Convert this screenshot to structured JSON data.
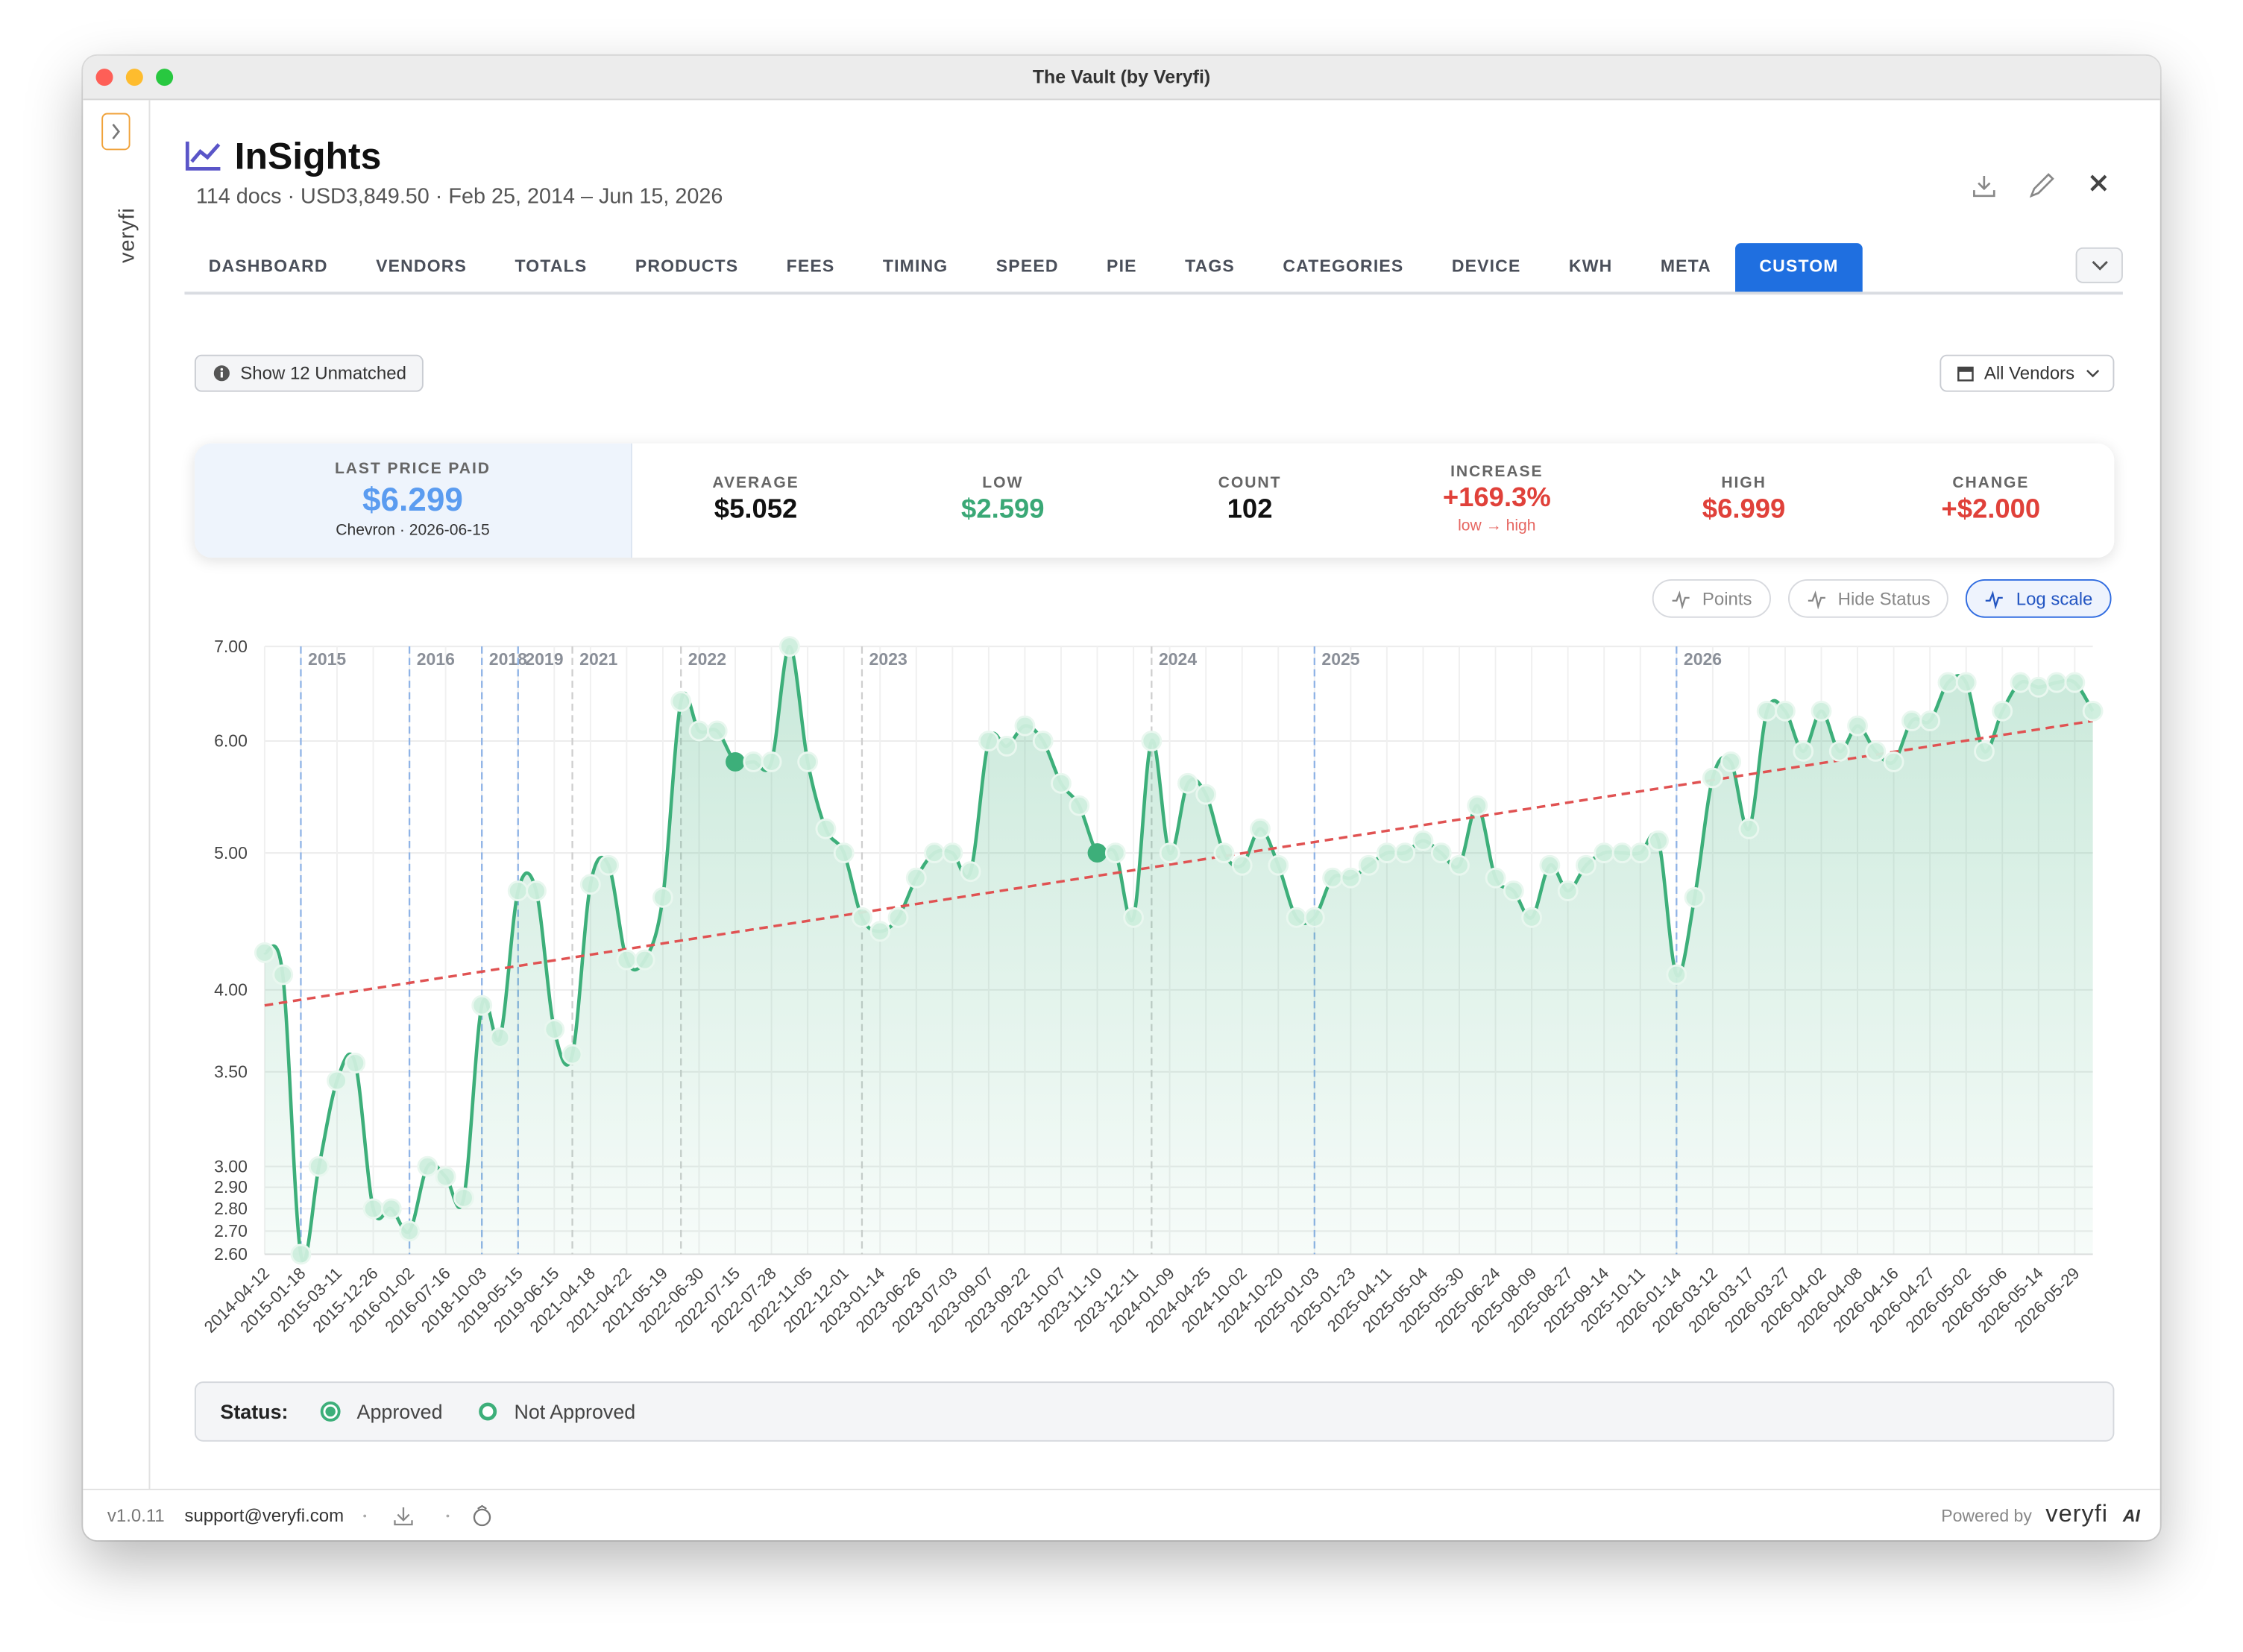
{
  "window": {
    "title": "The Vault (by Veryfi)"
  },
  "sidebar": {
    "brand": "veryfi"
  },
  "header": {
    "title": "InSights",
    "subtitle": "114 docs · USD3,849.50 · Feb 25, 2014 – Jun 15, 2026"
  },
  "tabs": [
    {
      "label": "DASHBOARD"
    },
    {
      "label": "VENDORS"
    },
    {
      "label": "TOTALS"
    },
    {
      "label": "PRODUCTS"
    },
    {
      "label": "FEES"
    },
    {
      "label": "TIMING"
    },
    {
      "label": "SPEED"
    },
    {
      "label": "PIE"
    },
    {
      "label": "TAGS"
    },
    {
      "label": "CATEGORIES"
    },
    {
      "label": "DEVICE"
    },
    {
      "label": "KWH"
    },
    {
      "label": "META"
    },
    {
      "label": "CUSTOM",
      "active": true
    }
  ],
  "buttons": {
    "unmatched": "Show 12 Unmatched",
    "vendors": "All Vendors"
  },
  "stats": {
    "last": {
      "label": "LAST PRICE PAID",
      "value": "$6.299",
      "note": "Chevron · 2026-06-15",
      "color": "#5b9cf0"
    },
    "items": [
      {
        "label": "AVERAGE",
        "value": "$5.052",
        "color": "#111111"
      },
      {
        "label": "LOW",
        "value": "$2.599",
        "color": "#3aa876"
      },
      {
        "label": "COUNT",
        "value": "102",
        "color": "#111111"
      },
      {
        "label": "INCREASE",
        "value": "+169.3%",
        "color": "#e0413a",
        "note": "low → high"
      },
      {
        "label": "HIGH",
        "value": "$6.999",
        "color": "#e0413a"
      },
      {
        "label": "CHANGE",
        "value": "+$2.000",
        "color": "#e0413a"
      }
    ]
  },
  "chart_controls": [
    {
      "label": "Points"
    },
    {
      "label": "Hide Status"
    },
    {
      "label": "Log scale",
      "active": true
    }
  ],
  "chart_data": {
    "type": "line",
    "color": "#3daf7a",
    "log_scale": true,
    "grid": true,
    "ylim": [
      2.6,
      7.0
    ],
    "yticks": [
      {
        "value": 2.6,
        "label": "2.60"
      },
      {
        "value": 2.7,
        "label": "2.70"
      },
      {
        "value": 2.8,
        "label": "2.80"
      },
      {
        "value": 2.9,
        "label": "2.90"
      },
      {
        "value": 3.0,
        "label": "3.00"
      },
      {
        "value": 3.5,
        "label": "3.50"
      },
      {
        "value": 4.0,
        "label": "4.00"
      },
      {
        "value": 5.0,
        "label": "5.00"
      },
      {
        "value": 6.0,
        "label": "6.00"
      },
      {
        "value": 7.0,
        "label": "7.00"
      }
    ],
    "categories": [
      "2014-04-12",
      null,
      "2015-01-18",
      null,
      "2015-03-11",
      null,
      "2015-12-26",
      null,
      "2016-01-02",
      null,
      "2016-07-16",
      null,
      "2018-10-03",
      null,
      "2019-05-15",
      null,
      "2019-06-15",
      null,
      "2021-04-18",
      null,
      "2021-04-22",
      null,
      "2021-05-19",
      null,
      "2022-06-30",
      null,
      "2022-07-15",
      null,
      "2022-07-28",
      null,
      "2022-11-05",
      null,
      "2022-12-01",
      null,
      "2023-01-14",
      null,
      "2023-06-26",
      null,
      "2023-07-03",
      null,
      "2023-09-07",
      null,
      "2023-09-22",
      null,
      "2023-10-07",
      null,
      "2023-11-10",
      null,
      "2023-12-11",
      null,
      "2024-01-09",
      null,
      "2024-04-25",
      null,
      "2024-10-02",
      null,
      "2024-10-20",
      null,
      "2025-01-03",
      null,
      "2025-01-23",
      null,
      "2025-04-11",
      null,
      "2025-05-04",
      null,
      "2025-05-30",
      null,
      "2025-06-24",
      null,
      "2025-08-09",
      null,
      "2025-08-27",
      null,
      "2025-09-14",
      null,
      "2025-10-11",
      null,
      "2026-01-14",
      null,
      "2026-03-12",
      null,
      "2026-03-17",
      null,
      "2026-03-27",
      null,
      "2026-04-02",
      null,
      "2026-04-08",
      null,
      "2026-04-16",
      null,
      "2026-04-27",
      null,
      "2026-05-02",
      null,
      "2026-05-06",
      null,
      "2026-05-14",
      null,
      "2026-05-29",
      null
    ],
    "values": [
      4.25,
      4.1,
      2.6,
      3.0,
      3.45,
      3.55,
      2.8,
      2.8,
      2.7,
      3.0,
      2.95,
      2.85,
      3.9,
      3.7,
      4.7,
      4.7,
      3.75,
      3.6,
      4.75,
      4.9,
      4.2,
      4.2,
      4.65,
      6.4,
      6.1,
      6.1,
      5.8,
      5.8,
      5.8,
      7.0,
      5.8,
      5.2,
      5.0,
      4.5,
      4.4,
      4.5,
      4.8,
      5.0,
      5.0,
      4.85,
      6.0,
      5.95,
      6.15,
      6.0,
      5.6,
      5.4,
      5.0,
      5.0,
      4.5,
      6.0,
      5.0,
      5.6,
      5.5,
      5.0,
      4.9,
      5.2,
      4.9,
      4.5,
      4.5,
      4.8,
      4.8,
      4.9,
      5.0,
      5.0,
      5.1,
      5.0,
      4.9,
      5.4,
      4.8,
      4.7,
      4.5,
      4.9,
      4.7,
      4.9,
      5.0,
      5.0,
      5.0,
      5.1,
      4.1,
      4.65,
      5.65,
      5.8,
      5.2,
      6.3,
      6.3,
      5.9,
      6.3,
      5.9,
      6.15,
      5.9,
      5.8,
      6.2,
      6.2,
      6.6,
      6.6,
      5.9,
      6.3,
      6.6,
      6.55,
      6.6,
      6.6,
      6.3
    ],
    "approved": [
      26,
      46
    ],
    "trend": {
      "color": "#e05252",
      "values": [
        3.9,
        6.2
      ]
    },
    "year_markers": [
      {
        "label": "2015",
        "at": 2,
        "color": "#8fb3e6"
      },
      {
        "label": "2016",
        "at": 8,
        "color": "#8fb3e6"
      },
      {
        "label": "2018",
        "at": 12,
        "color": "#8fb3e6"
      },
      {
        "label": "2019",
        "at": 14,
        "color": "#8fb3e6"
      },
      {
        "label": "2021",
        "at": 17,
        "color": "#cfcfcf"
      },
      {
        "label": "2022",
        "at": 23,
        "color": "#cfcfcf"
      },
      {
        "label": "2023",
        "at": 33,
        "color": "#cfcfcf"
      },
      {
        "label": "2024",
        "at": 49,
        "color": "#cfcfcf"
      },
      {
        "label": "2025",
        "at": 58,
        "color": "#8fb3e6"
      },
      {
        "label": "2026",
        "at": 78,
        "color": "#8fb3e6"
      }
    ]
  },
  "status_legend": {
    "title": "Status:",
    "items": [
      "Approved",
      "Not Approved"
    ]
  },
  "footer": {
    "version": "v1.0.11",
    "email": "support@veryfi.com",
    "powered": "Powered by",
    "brand": "veryfi",
    "ai": "AI"
  }
}
